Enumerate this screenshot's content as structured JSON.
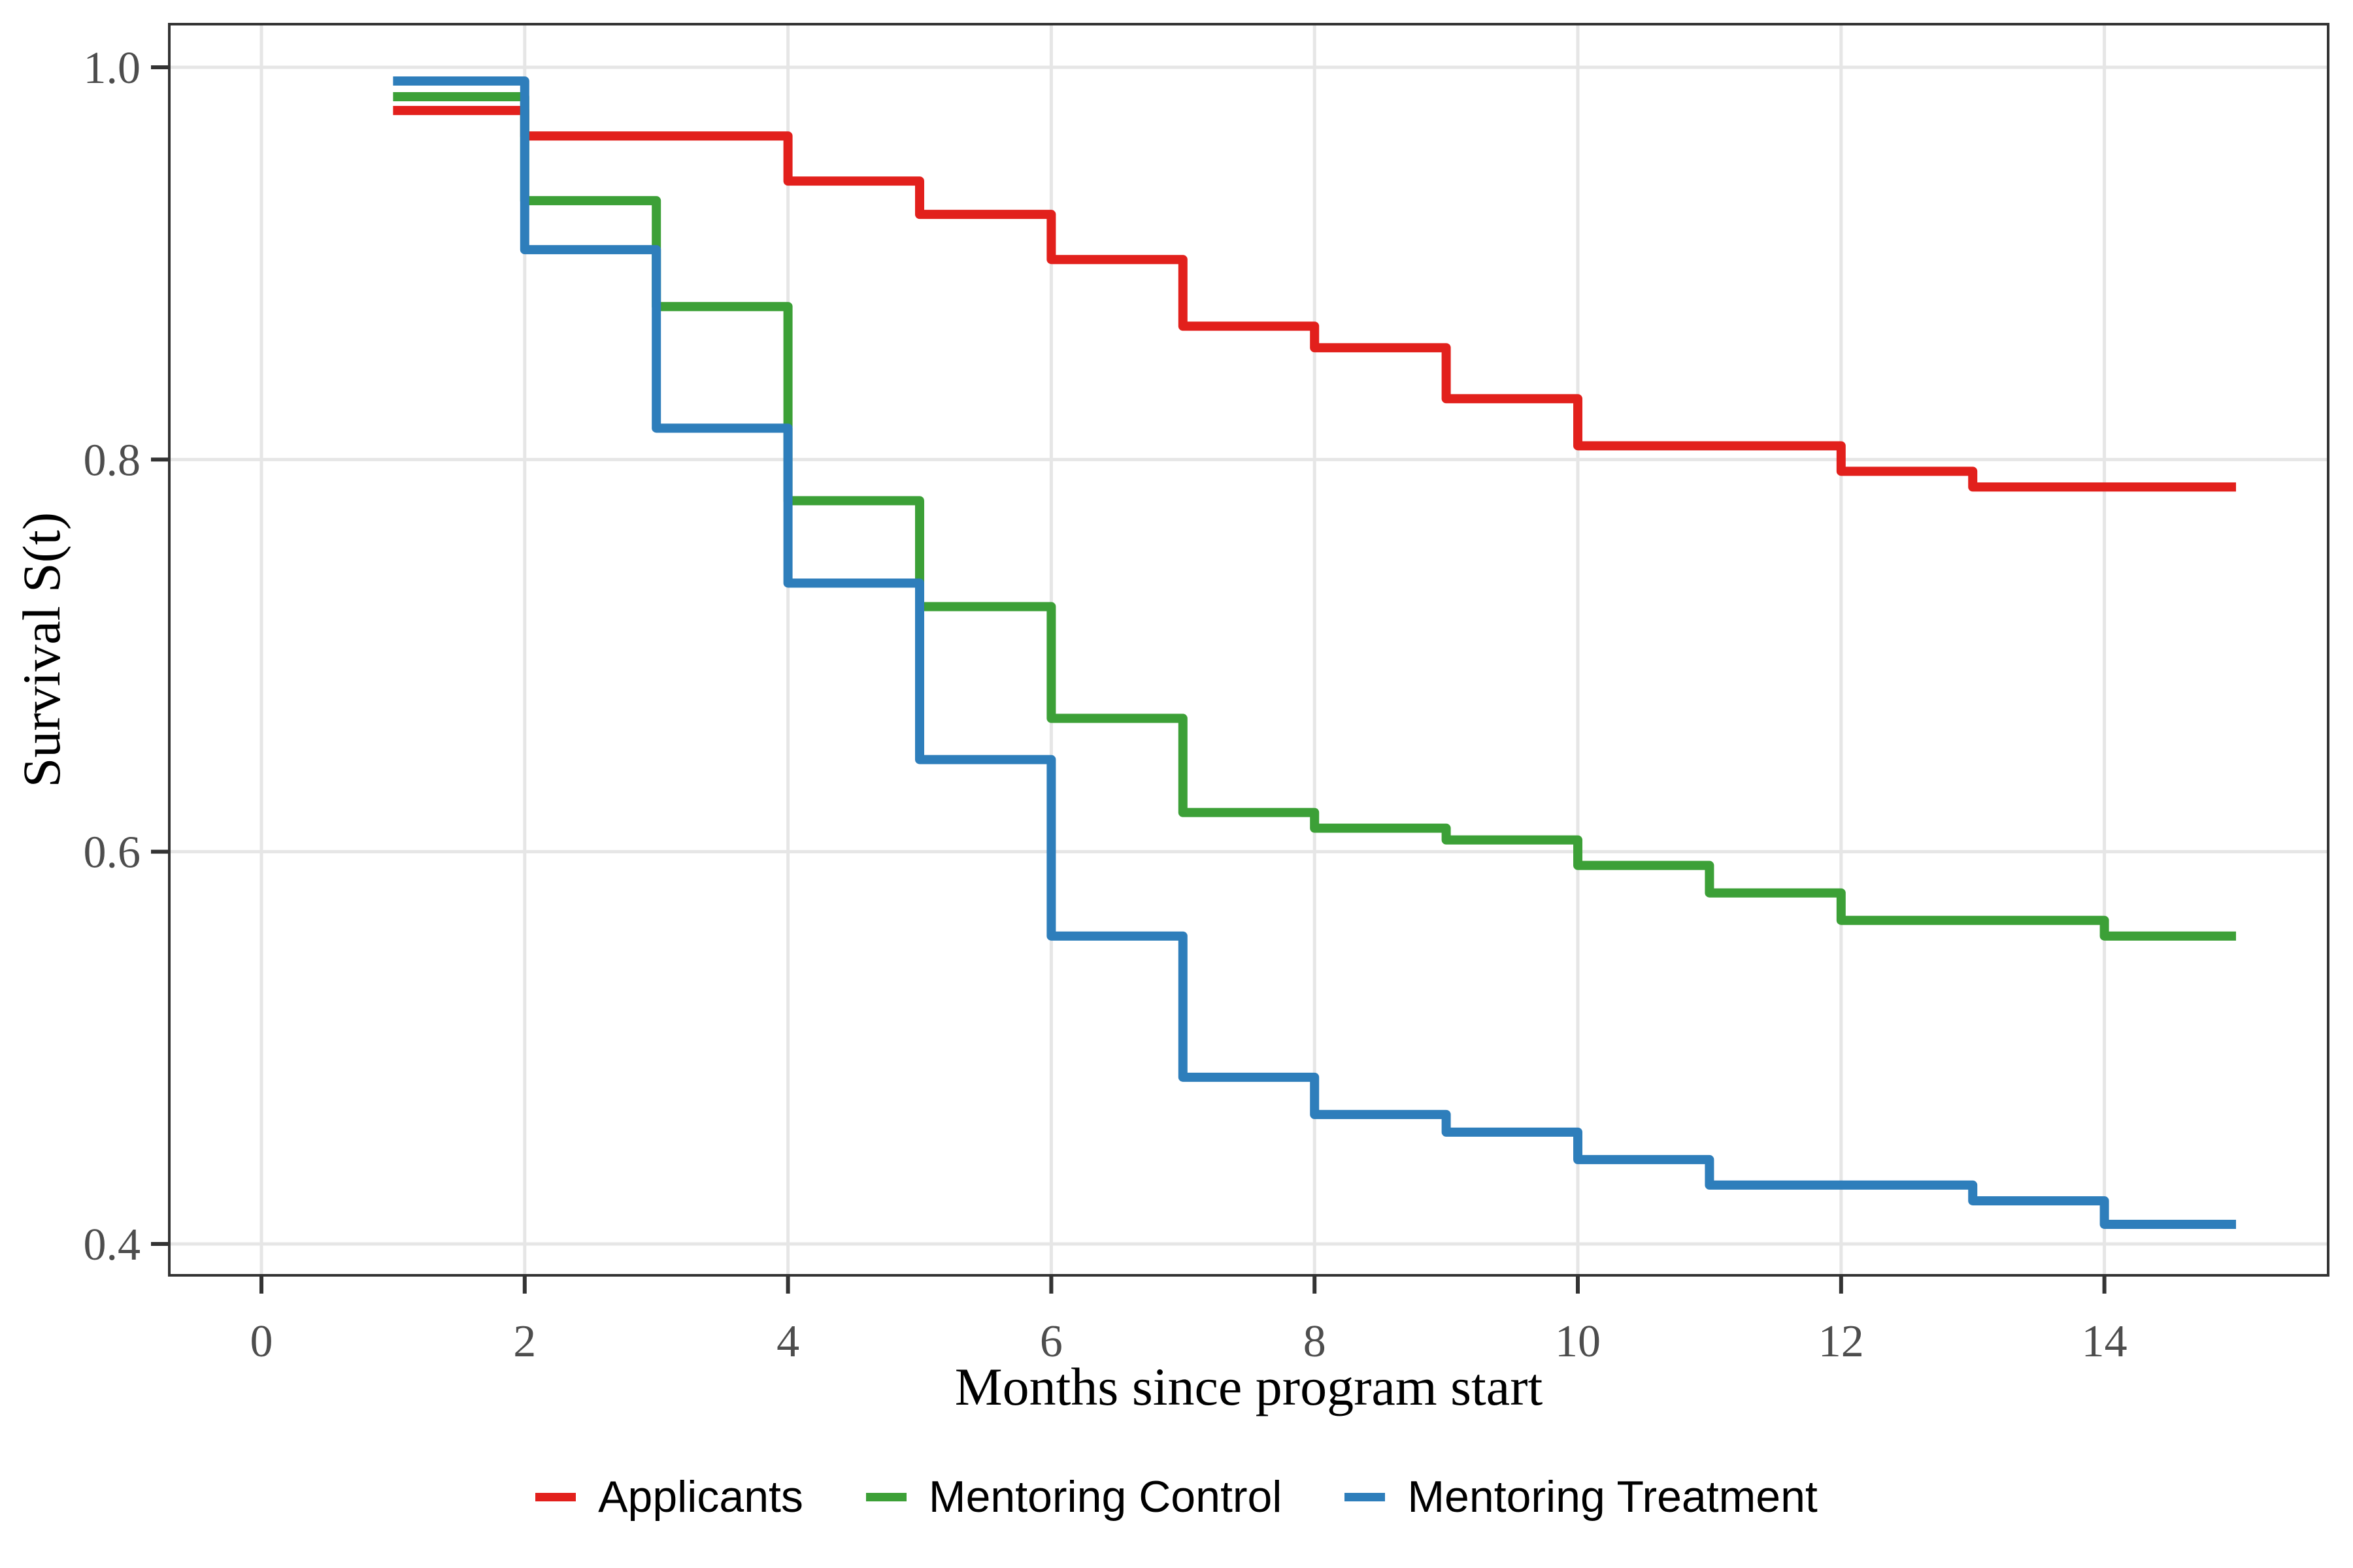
{
  "figure": {
    "background_color": "#FFFFFF",
    "panel_border_color": "#333333",
    "grid_color": "#E6E6E6",
    "tick_color": "#333333",
    "tick_label_color": "#4D4D4D"
  },
  "chart_data": {
    "type": "line",
    "subtype": "kaplan-meier-step",
    "title": "",
    "xlabel": "Months since program start",
    "ylabel": "Survival S(t)",
    "xlim": [
      -0.7,
      15.7
    ],
    "ylim": [
      0.384,
      1.022
    ],
    "x_breaks": [
      0,
      2,
      4,
      6,
      8,
      10,
      12,
      14
    ],
    "x_break_labels": [
      "0",
      "2",
      "4",
      "6",
      "8",
      "10",
      "12",
      "14"
    ],
    "y_breaks": [
      0.4,
      0.6,
      0.8,
      1.0
    ],
    "y_break_labels": [
      "0.4",
      "0.6",
      "0.8",
      "1.0"
    ],
    "grid": "major-only",
    "legend_position": "bottom",
    "curve_start": 1,
    "curve_end": 15,
    "series": [
      {
        "name": "Applicants",
        "color": "#E2201C",
        "steps": [
          {
            "t": 1,
            "s": 0.978
          },
          {
            "t": 2,
            "s": 0.965
          },
          {
            "t": 4,
            "s": 0.942
          },
          {
            "t": 5,
            "s": 0.925
          },
          {
            "t": 6,
            "s": 0.902
          },
          {
            "t": 7,
            "s": 0.868
          },
          {
            "t": 8,
            "s": 0.857
          },
          {
            "t": 9,
            "s": 0.831
          },
          {
            "t": 10,
            "s": 0.807
          },
          {
            "t": 12,
            "s": 0.794
          },
          {
            "t": 13,
            "s": 0.786
          }
        ]
      },
      {
        "name": "Mentoring Control",
        "color": "#3CA037",
        "steps": [
          {
            "t": 1,
            "s": 0.985
          },
          {
            "t": 2,
            "s": 0.932
          },
          {
            "t": 3,
            "s": 0.878
          },
          {
            "t": 4,
            "s": 0.779
          },
          {
            "t": 5,
            "s": 0.725
          },
          {
            "t": 6,
            "s": 0.668
          },
          {
            "t": 7,
            "s": 0.62
          },
          {
            "t": 8,
            "s": 0.612
          },
          {
            "t": 9,
            "s": 0.606
          },
          {
            "t": 10,
            "s": 0.593
          },
          {
            "t": 11,
            "s": 0.579
          },
          {
            "t": 12,
            "s": 0.565
          },
          {
            "t": 14,
            "s": 0.557
          }
        ]
      },
      {
        "name": "Mentoring Treatment",
        "color": "#2E7EBB",
        "steps": [
          {
            "t": 1,
            "s": 0.993
          },
          {
            "t": 2,
            "s": 0.907
          },
          {
            "t": 3,
            "s": 0.816
          },
          {
            "t": 4,
            "s": 0.737
          },
          {
            "t": 5,
            "s": 0.647
          },
          {
            "t": 6,
            "s": 0.557
          },
          {
            "t": 7,
            "s": 0.485
          },
          {
            "t": 8,
            "s": 0.466
          },
          {
            "t": 9,
            "s": 0.457
          },
          {
            "t": 10,
            "s": 0.443
          },
          {
            "t": 11,
            "s": 0.43
          },
          {
            "t": 13,
            "s": 0.422
          },
          {
            "t": 14,
            "s": 0.41
          }
        ]
      }
    ]
  }
}
